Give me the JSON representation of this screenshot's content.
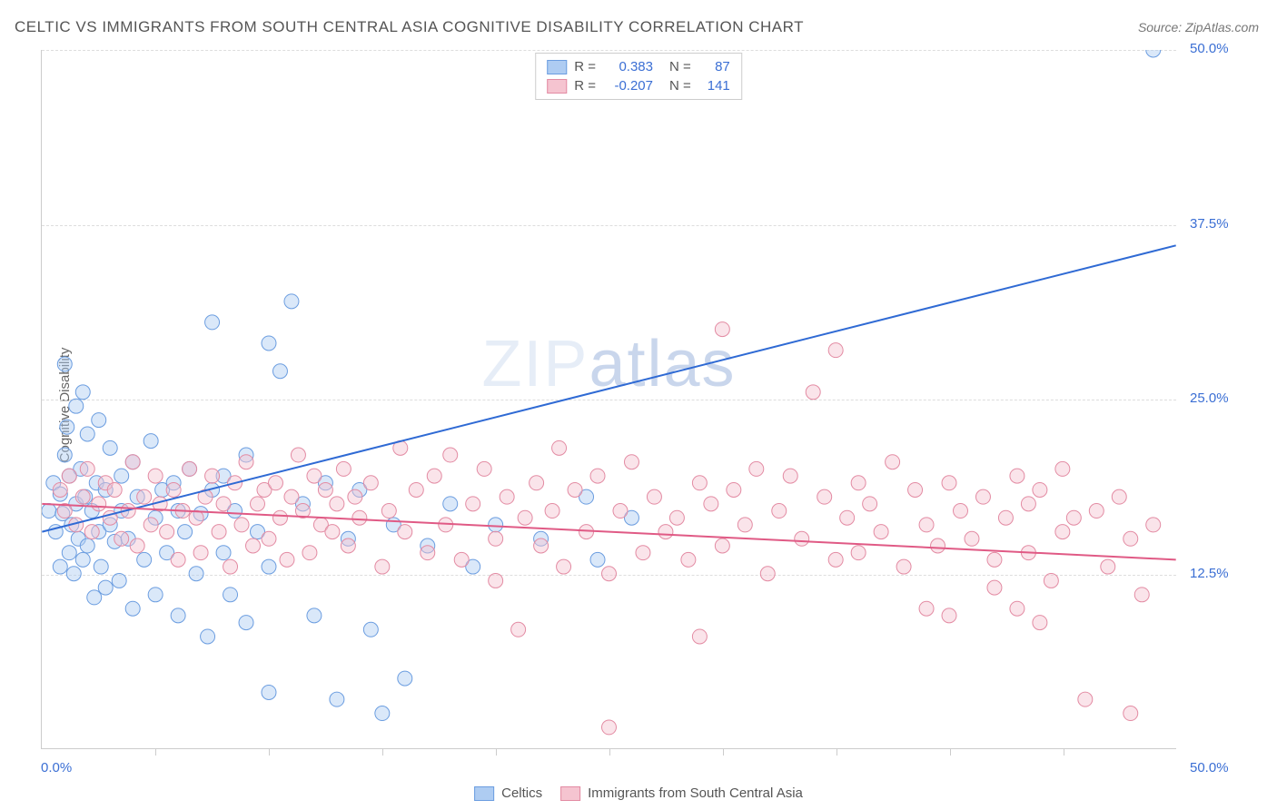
{
  "title": "CELTIC VS IMMIGRANTS FROM SOUTH CENTRAL ASIA COGNITIVE DISABILITY CORRELATION CHART",
  "source_label": "Source: ZipAtlas.com",
  "ylabel": "Cognitive Disability",
  "watermark_light": "ZIP",
  "watermark_dark": "atlas",
  "chart": {
    "type": "scatter",
    "xlim": [
      0,
      50
    ],
    "ylim": [
      0,
      50
    ],
    "ytick_values": [
      12.5,
      25.0,
      37.5,
      50.0
    ],
    "ytick_labels": [
      "12.5%",
      "25.0%",
      "37.5%",
      "50.0%"
    ],
    "xtick_minor": [
      5,
      10,
      15,
      20,
      25,
      30,
      35,
      40,
      45
    ],
    "x_start_label": "0.0%",
    "x_end_label": "50.0%",
    "background_color": "#ffffff",
    "grid_color": "#dddddd",
    "axis_color": "#cccccc",
    "tick_label_color": "#3b6fd4",
    "marker_radius": 8,
    "marker_opacity": 0.45,
    "line_width": 2,
    "series": [
      {
        "name": "Celtics",
        "color_fill": "#aeccf2",
        "color_stroke": "#6b9de0",
        "line_color": "#2f6ad4",
        "R": "0.383",
        "N": "87",
        "trend_line": {
          "x1": 0,
          "y1": 15.5,
          "x2": 50,
          "y2": 36.0
        },
        "points": [
          [
            0.3,
            17.0
          ],
          [
            0.5,
            19.0
          ],
          [
            0.6,
            15.5
          ],
          [
            0.8,
            18.2
          ],
          [
            0.8,
            13.0
          ],
          [
            0.9,
            16.8
          ],
          [
            1.0,
            21.0
          ],
          [
            1.0,
            27.5
          ],
          [
            1.1,
            23.0
          ],
          [
            1.2,
            14.0
          ],
          [
            1.2,
            19.5
          ],
          [
            1.3,
            16.0
          ],
          [
            1.4,
            12.5
          ],
          [
            1.5,
            24.5
          ],
          [
            1.5,
            17.5
          ],
          [
            1.6,
            15.0
          ],
          [
            1.7,
            20.0
          ],
          [
            1.8,
            13.5
          ],
          [
            1.8,
            25.5
          ],
          [
            1.9,
            18.0
          ],
          [
            2.0,
            22.5
          ],
          [
            2.0,
            14.5
          ],
          [
            2.2,
            17.0
          ],
          [
            2.3,
            10.8
          ],
          [
            2.4,
            19.0
          ],
          [
            2.5,
            15.5
          ],
          [
            2.5,
            23.5
          ],
          [
            2.6,
            13.0
          ],
          [
            2.8,
            18.5
          ],
          [
            2.8,
            11.5
          ],
          [
            3.0,
            16.0
          ],
          [
            3.0,
            21.5
          ],
          [
            3.2,
            14.8
          ],
          [
            3.4,
            12.0
          ],
          [
            3.5,
            19.5
          ],
          [
            3.5,
            17.0
          ],
          [
            3.8,
            15.0
          ],
          [
            4.0,
            10.0
          ],
          [
            4.0,
            20.5
          ],
          [
            4.2,
            18.0
          ],
          [
            4.5,
            13.5
          ],
          [
            4.8,
            22.0
          ],
          [
            5.0,
            16.5
          ],
          [
            5.0,
            11.0
          ],
          [
            5.3,
            18.5
          ],
          [
            5.5,
            14.0
          ],
          [
            5.8,
            19.0
          ],
          [
            6.0,
            9.5
          ],
          [
            6.0,
            17.0
          ],
          [
            6.3,
            15.5
          ],
          [
            6.5,
            20.0
          ],
          [
            6.8,
            12.5
          ],
          [
            7.0,
            16.8
          ],
          [
            7.3,
            8.0
          ],
          [
            7.5,
            30.5
          ],
          [
            7.5,
            18.5
          ],
          [
            8.0,
            14.0
          ],
          [
            8.0,
            19.5
          ],
          [
            8.3,
            11.0
          ],
          [
            8.5,
            17.0
          ],
          [
            9.0,
            9.0
          ],
          [
            9.0,
            21.0
          ],
          [
            9.5,
            15.5
          ],
          [
            10.0,
            29.0
          ],
          [
            10.0,
            13.0
          ],
          [
            10.0,
            4.0
          ],
          [
            10.5,
            27.0
          ],
          [
            11.0,
            32.0
          ],
          [
            11.5,
            17.5
          ],
          [
            12.0,
            9.5
          ],
          [
            12.5,
            19.0
          ],
          [
            13.0,
            3.5
          ],
          [
            13.5,
            15.0
          ],
          [
            14.0,
            18.5
          ],
          [
            14.5,
            8.5
          ],
          [
            15.0,
            2.5
          ],
          [
            15.5,
            16.0
          ],
          [
            16.0,
            5.0
          ],
          [
            17.0,
            14.5
          ],
          [
            18.0,
            17.5
          ],
          [
            19.0,
            13.0
          ],
          [
            20.0,
            16.0
          ],
          [
            22.0,
            15.0
          ],
          [
            24.0,
            18.0
          ],
          [
            24.5,
            13.5
          ],
          [
            26.0,
            16.5
          ],
          [
            49.0,
            50.0
          ]
        ]
      },
      {
        "name": "Immigrants from South Central Asia",
        "color_fill": "#f5c4d0",
        "color_stroke": "#e38ba3",
        "line_color": "#e05a85",
        "R": "-0.207",
        "N": "141",
        "trend_line": {
          "x1": 0,
          "y1": 17.5,
          "x2": 50,
          "y2": 13.5
        },
        "points": [
          [
            0.8,
            18.5
          ],
          [
            1.0,
            17.0
          ],
          [
            1.2,
            19.5
          ],
          [
            1.5,
            16.0
          ],
          [
            1.8,
            18.0
          ],
          [
            2.0,
            20.0
          ],
          [
            2.2,
            15.5
          ],
          [
            2.5,
            17.5
          ],
          [
            2.8,
            19.0
          ],
          [
            3.0,
            16.5
          ],
          [
            3.2,
            18.5
          ],
          [
            3.5,
            15.0
          ],
          [
            3.8,
            17.0
          ],
          [
            4.0,
            20.5
          ],
          [
            4.2,
            14.5
          ],
          [
            4.5,
            18.0
          ],
          [
            4.8,
            16.0
          ],
          [
            5.0,
            19.5
          ],
          [
            5.2,
            17.5
          ],
          [
            5.5,
            15.5
          ],
          [
            5.8,
            18.5
          ],
          [
            6.0,
            13.5
          ],
          [
            6.2,
            17.0
          ],
          [
            6.5,
            20.0
          ],
          [
            6.8,
            16.5
          ],
          [
            7.0,
            14.0
          ],
          [
            7.2,
            18.0
          ],
          [
            7.5,
            19.5
          ],
          [
            7.8,
            15.5
          ],
          [
            8.0,
            17.5
          ],
          [
            8.3,
            13.0
          ],
          [
            8.5,
            19.0
          ],
          [
            8.8,
            16.0
          ],
          [
            9.0,
            20.5
          ],
          [
            9.3,
            14.5
          ],
          [
            9.5,
            17.5
          ],
          [
            9.8,
            18.5
          ],
          [
            10.0,
            15.0
          ],
          [
            10.3,
            19.0
          ],
          [
            10.5,
            16.5
          ],
          [
            10.8,
            13.5
          ],
          [
            11.0,
            18.0
          ],
          [
            11.3,
            21.0
          ],
          [
            11.5,
            17.0
          ],
          [
            11.8,
            14.0
          ],
          [
            12.0,
            19.5
          ],
          [
            12.3,
            16.0
          ],
          [
            12.5,
            18.5
          ],
          [
            12.8,
            15.5
          ],
          [
            13.0,
            17.5
          ],
          [
            13.3,
            20.0
          ],
          [
            13.5,
            14.5
          ],
          [
            13.8,
            18.0
          ],
          [
            14.0,
            16.5
          ],
          [
            14.5,
            19.0
          ],
          [
            15.0,
            13.0
          ],
          [
            15.3,
            17.0
          ],
          [
            15.8,
            21.5
          ],
          [
            16.0,
            15.5
          ],
          [
            16.5,
            18.5
          ],
          [
            17.0,
            14.0
          ],
          [
            17.3,
            19.5
          ],
          [
            17.8,
            16.0
          ],
          [
            18.0,
            21.0
          ],
          [
            18.5,
            13.5
          ],
          [
            19.0,
            17.5
          ],
          [
            19.5,
            20.0
          ],
          [
            20.0,
            15.0
          ],
          [
            20.0,
            12.0
          ],
          [
            20.5,
            18.0
          ],
          [
            21.0,
            8.5
          ],
          [
            21.3,
            16.5
          ],
          [
            21.8,
            19.0
          ],
          [
            22.0,
            14.5
          ],
          [
            22.5,
            17.0
          ],
          [
            22.8,
            21.5
          ],
          [
            23.0,
            13.0
          ],
          [
            23.5,
            18.5
          ],
          [
            24.0,
            15.5
          ],
          [
            24.5,
            19.5
          ],
          [
            25.0,
            12.5
          ],
          [
            25.0,
            1.5
          ],
          [
            25.5,
            17.0
          ],
          [
            26.0,
            20.5
          ],
          [
            26.5,
            14.0
          ],
          [
            27.0,
            18.0
          ],
          [
            27.5,
            15.5
          ],
          [
            28.0,
            16.5
          ],
          [
            28.5,
            13.5
          ],
          [
            29.0,
            19.0
          ],
          [
            29.0,
            8.0
          ],
          [
            29.5,
            17.5
          ],
          [
            30.0,
            14.5
          ],
          [
            30.0,
            30.0
          ],
          [
            30.5,
            18.5
          ],
          [
            31.0,
            16.0
          ],
          [
            31.5,
            20.0
          ],
          [
            32.0,
            12.5
          ],
          [
            32.5,
            17.0
          ],
          [
            33.0,
            19.5
          ],
          [
            33.5,
            15.0
          ],
          [
            34.0,
            25.5
          ],
          [
            34.5,
            18.0
          ],
          [
            35.0,
            13.5
          ],
          [
            35.0,
            28.5
          ],
          [
            35.5,
            16.5
          ],
          [
            36.0,
            14.0
          ],
          [
            36.0,
            19.0
          ],
          [
            36.5,
            17.5
          ],
          [
            37.0,
            15.5
          ],
          [
            37.5,
            20.5
          ],
          [
            38.0,
            13.0
          ],
          [
            38.5,
            18.5
          ],
          [
            39.0,
            16.0
          ],
          [
            39.0,
            10.0
          ],
          [
            39.5,
            14.5
          ],
          [
            40.0,
            19.0
          ],
          [
            40.0,
            9.5
          ],
          [
            40.5,
            17.0
          ],
          [
            41.0,
            15.0
          ],
          [
            41.5,
            18.0
          ],
          [
            42.0,
            11.5
          ],
          [
            42.0,
            13.5
          ],
          [
            42.5,
            16.5
          ],
          [
            43.0,
            19.5
          ],
          [
            43.0,
            10.0
          ],
          [
            43.5,
            14.0
          ],
          [
            43.5,
            17.5
          ],
          [
            44.0,
            9.0
          ],
          [
            44.0,
            18.5
          ],
          [
            44.5,
            12.0
          ],
          [
            45.0,
            15.5
          ],
          [
            45.0,
            20.0
          ],
          [
            45.5,
            16.5
          ],
          [
            46.0,
            3.5
          ],
          [
            46.5,
            17.0
          ],
          [
            47.0,
            13.0
          ],
          [
            47.5,
            18.0
          ],
          [
            48.0,
            2.5
          ],
          [
            48.0,
            15.0
          ],
          [
            48.5,
            11.0
          ],
          [
            49.0,
            16.0
          ]
        ]
      }
    ]
  },
  "legend_top": {
    "r_label": "R =",
    "n_label": "N =",
    "value_color": "#3b6fd4",
    "text_color": "#555555"
  },
  "legend_bottom": {
    "text_color": "#555555"
  }
}
